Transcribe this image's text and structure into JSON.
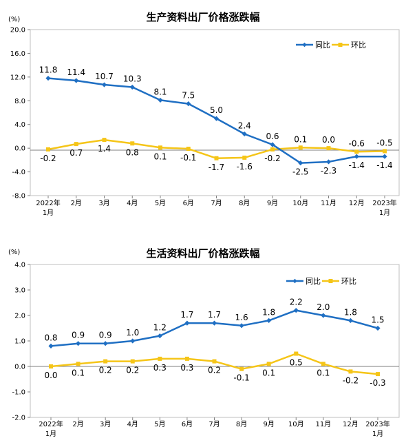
{
  "chart_data": [
    {
      "type": "line",
      "title": "生产资料出厂价格涨跌幅",
      "unit_label": "(%)",
      "ylim": [
        -8.0,
        20.0
      ],
      "yticks": [
        "20.0",
        "16.0",
        "12.0",
        "8.0",
        "4.0",
        "0.0",
        "-4.0",
        "-8.0"
      ],
      "ytick_values": [
        20,
        16,
        12,
        8,
        4,
        0,
        -4,
        -8
      ],
      "categories": [
        [
          "2022年",
          "1月"
        ],
        [
          "2月"
        ],
        [
          "3月"
        ],
        [
          "4月"
        ],
        [
          "5月"
        ],
        [
          "6月"
        ],
        [
          "7月"
        ],
        [
          "8月"
        ],
        [
          "9月"
        ],
        [
          "10月"
        ],
        [
          "11月"
        ],
        [
          "12月"
        ],
        [
          "2023年",
          "1月"
        ]
      ],
      "legend_position": "top-right",
      "grid": false,
      "series": [
        {
          "name": "同比",
          "color": "#1f6fc3",
          "marker": "diamond",
          "values": [
            11.8,
            11.4,
            10.7,
            10.3,
            8.1,
            7.5,
            5.0,
            2.4,
            0.6,
            -2.5,
            -2.3,
            -1.4,
            -1.4
          ],
          "labels": [
            "11.8",
            "11.4",
            "10.7",
            "10.3",
            "8.1",
            "7.5",
            "5.0",
            "2.4",
            "0.6",
            "-2.5",
            "-2.3",
            "-1.4",
            "-1.4"
          ],
          "label_side": [
            "above",
            "above",
            "above",
            "above",
            "above",
            "above",
            "above",
            "above",
            "above",
            "below",
            "below",
            "below",
            "below"
          ]
        },
        {
          "name": "环比",
          "color": "#f5c518",
          "marker": "square",
          "values": [
            -0.2,
            0.7,
            1.4,
            0.8,
            0.1,
            -0.1,
            -1.7,
            -1.6,
            -0.2,
            0.1,
            0.0,
            -0.6,
            -0.5
          ],
          "labels": [
            "-0.2",
            "0.7",
            "1.4",
            "0.8",
            "0.1",
            "-0.1",
            "-1.7",
            "-1.6",
            "-0.2",
            "0.1",
            "0.0",
            "-0.6",
            "-0.5"
          ],
          "label_side": [
            "below",
            "below",
            "below",
            "below",
            "below",
            "below",
            "below",
            "below",
            "below",
            "above",
            "above",
            "above",
            "above"
          ]
        }
      ]
    },
    {
      "type": "line",
      "title": "生活资料出厂价格涨跌幅",
      "unit_label": "(%)",
      "ylim": [
        -2.0,
        4.0
      ],
      "yticks": [
        "4.0",
        "3.0",
        "2.0",
        "1.0",
        "0.0",
        "-1.0",
        "-2.0"
      ],
      "ytick_values": [
        4,
        3,
        2,
        1,
        0,
        -1,
        -2
      ],
      "categories": [
        [
          "2022年",
          "1月"
        ],
        [
          "2月"
        ],
        [
          "3月"
        ],
        [
          "4月"
        ],
        [
          "5月"
        ],
        [
          "6月"
        ],
        [
          "7月"
        ],
        [
          "8月"
        ],
        [
          "9月"
        ],
        [
          "10月"
        ],
        [
          "11月"
        ],
        [
          "12月"
        ],
        [
          "2023年",
          "1月"
        ]
      ],
      "legend_position": "top-right",
      "grid": false,
      "series": [
        {
          "name": "同比",
          "color": "#1f6fc3",
          "marker": "diamond",
          "values": [
            0.8,
            0.9,
            0.9,
            1.0,
            1.2,
            1.7,
            1.7,
            1.6,
            1.8,
            2.2,
            2.0,
            1.8,
            1.5
          ],
          "labels": [
            "0.8",
            "0.9",
            "0.9",
            "1.0",
            "1.2",
            "1.7",
            "1.7",
            "1.6",
            "1.8",
            "2.2",
            "2.0",
            "1.8",
            "1.5"
          ],
          "label_side": [
            "above",
            "above",
            "above",
            "above",
            "above",
            "above",
            "above",
            "above",
            "above",
            "above",
            "above",
            "above",
            "above"
          ]
        },
        {
          "name": "环比",
          "color": "#f5c518",
          "marker": "square",
          "values": [
            0.0,
            0.1,
            0.2,
            0.2,
            0.3,
            0.3,
            0.2,
            -0.1,
            0.1,
            0.5,
            0.1,
            -0.2,
            -0.3
          ],
          "labels": [
            "0.0",
            "0.1",
            "0.2",
            "0.2",
            "0.3",
            "0.3",
            "0.2",
            "-0.1",
            "0.1",
            "0.5",
            "0.1",
            "-0.2",
            "-0.3"
          ],
          "label_side": [
            "below",
            "below",
            "below",
            "below",
            "below",
            "below",
            "below",
            "below",
            "below",
            "below",
            "below",
            "below",
            "below"
          ]
        }
      ]
    }
  ]
}
